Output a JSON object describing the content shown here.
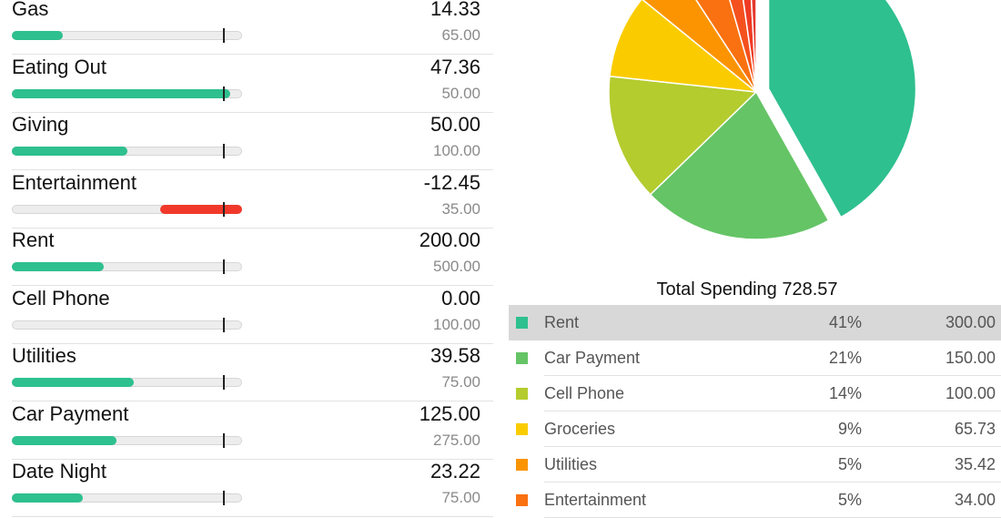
{
  "budgets": [
    {
      "name": "Gas",
      "spent": "14.33",
      "limit": "65.00",
      "fraction": 0.22,
      "over": false
    },
    {
      "name": "Eating Out",
      "spent": "47.36",
      "limit": "50.00",
      "fraction": 0.947,
      "over": false
    },
    {
      "name": "Giving",
      "spent": "50.00",
      "limit": "100.00",
      "fraction": 0.5,
      "over": false
    },
    {
      "name": "Entertainment",
      "spent": "-12.45",
      "limit": "35.00",
      "fraction": 0.356,
      "over": true
    },
    {
      "name": "Rent",
      "spent": "200.00",
      "limit": "500.00",
      "fraction": 0.4,
      "over": false
    },
    {
      "name": "Cell Phone",
      "spent": "0.00",
      "limit": "100.00",
      "fraction": 0,
      "over": false
    },
    {
      "name": "Utilities",
      "spent": "39.58",
      "limit": "75.00",
      "fraction": 0.528,
      "over": false
    },
    {
      "name": "Car Payment",
      "spent": "125.00",
      "limit": "275.00",
      "fraction": 0.455,
      "over": false
    },
    {
      "name": "Date Night",
      "spent": "23.22",
      "limit": "75.00",
      "fraction": 0.31,
      "over": false
    }
  ],
  "colors": {
    "bar_normal": "#2ec08e",
    "bar_over": "#f0392b"
  },
  "total_label": "Total Spending 728.57",
  "chart_data": {
    "type": "pie",
    "slices": [
      {
        "name": "Rent",
        "value": 300.0,
        "percent": "41%",
        "amount": "300.00",
        "color": "#2ec08e"
      },
      {
        "name": "Car Payment",
        "value": 150.0,
        "percent": "21%",
        "amount": "150.00",
        "color": "#65c466"
      },
      {
        "name": "Cell Phone",
        "value": 100.0,
        "percent": "14%",
        "amount": "100.00",
        "color": "#b4cc2e"
      },
      {
        "name": "Groceries",
        "value": 65.73,
        "percent": "9%",
        "amount": "65.73",
        "color": "#facc00"
      },
      {
        "name": "Utilities",
        "value": 35.42,
        "percent": "5%",
        "amount": "35.42",
        "color": "#fb9400"
      },
      {
        "name": "Entertainment",
        "value": 34.0,
        "percent": "5%",
        "amount": "34.00",
        "color": "#f97110"
      },
      {
        "name": "",
        "value": 16.0,
        "percent": "",
        "amount": "",
        "color": "#f4511e"
      },
      {
        "name": "",
        "value": 10.0,
        "percent": "",
        "amount": "",
        "color": "#ef3b24"
      },
      {
        "name": "",
        "value": 6.0,
        "percent": "",
        "amount": "",
        "color": "#e5382c"
      }
    ],
    "exploded": "Rent",
    "legend_selected": "Rent"
  }
}
